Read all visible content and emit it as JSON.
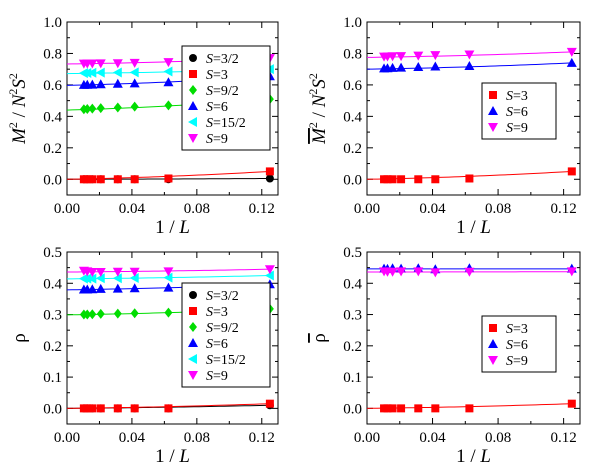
{
  "chart_data": [
    {
      "type": "scatter",
      "panel": "top-left",
      "xlabel": "1 / L",
      "ylabel": "M^2 / N^2 S^2",
      "xlim": [
        0,
        0.13
      ],
      "ylim": [
        -0.1,
        1.0
      ],
      "xticks": [
        "0.00",
        "0.04",
        "0.08",
        "0.12"
      ],
      "yticks": [
        "0.0",
        "0.2",
        "0.4",
        "0.6",
        "0.8",
        "1.0"
      ],
      "legend": {
        "position": "right"
      },
      "x": [
        0.0104,
        0.0125,
        0.0156,
        0.0208,
        0.0313,
        0.0417,
        0.0625,
        0.125
      ],
      "series": [
        {
          "name": "S=3/2",
          "marker": "circle",
          "color": "#000000",
          "values": [
            0.0,
            0.0,
            0.0,
            0.0,
            0.0,
            0.0,
            0.0,
            0.005
          ],
          "fit": [
            0.0,
            0.005
          ]
        },
        {
          "name": "S=3",
          "marker": "square",
          "color": "#ff0000",
          "values": [
            0.0,
            0.0,
            0.0,
            0.0,
            0.0,
            0.0,
            0.005,
            0.05
          ],
          "fit": [
            0.0,
            0.05
          ]
        },
        {
          "name": "S=9/2",
          "marker": "diamond",
          "color": "#00dd00",
          "values": [
            0.445,
            0.447,
            0.449,
            0.452,
            0.456,
            0.462,
            0.47,
            0.51
          ],
          "fit": [
            0.44,
            0.51
          ]
        },
        {
          "name": "S=6",
          "marker": "triangle-up",
          "color": "#0000ff",
          "values": [
            0.6,
            0.601,
            0.602,
            0.604,
            0.607,
            0.61,
            0.617,
            0.655
          ],
          "fit": [
            0.597,
            0.655
          ]
        },
        {
          "name": "S=15/2",
          "marker": "triangle-left",
          "color": "#00ffff",
          "values": [
            0.675,
            0.676,
            0.677,
            0.678,
            0.679,
            0.68,
            0.685,
            0.7
          ],
          "fit": [
            0.672,
            0.7
          ]
        },
        {
          "name": "S=9",
          "marker": "triangle-down",
          "color": "#ff00ff",
          "values": [
            0.735,
            0.736,
            0.736,
            0.737,
            0.738,
            0.74,
            0.745,
            0.77
          ],
          "fit": [
            0.733,
            0.77
          ]
        }
      ]
    },
    {
      "type": "scatter",
      "panel": "top-right",
      "xlabel": "1 / L",
      "ylabel": "M̄^2 / N^2 S^2",
      "xlim": [
        0,
        0.13
      ],
      "ylim": [
        -0.1,
        1.0
      ],
      "xticks": [
        "0.00",
        "0.04",
        "0.08",
        "0.12"
      ],
      "yticks": [
        "0.0",
        "0.2",
        "0.4",
        "0.6",
        "0.8",
        "1.0"
      ],
      "legend": {
        "position": "right"
      },
      "x": [
        0.0104,
        0.0125,
        0.0156,
        0.0208,
        0.0313,
        0.0417,
        0.0625,
        0.125
      ],
      "series": [
        {
          "name": "S=3",
          "marker": "square",
          "color": "#ff0000",
          "values": [
            0.0,
            0.0,
            0.0,
            0.0,
            0.0,
            0.0,
            0.005,
            0.05
          ],
          "fit": [
            0.0,
            0.05
          ]
        },
        {
          "name": "S=6",
          "marker": "triangle-up",
          "color": "#0000ff",
          "values": [
            0.705,
            0.706,
            0.708,
            0.71,
            0.714,
            0.717,
            0.72,
            0.74
          ],
          "fit": [
            0.7,
            0.74
          ]
        },
        {
          "name": "S=9",
          "marker": "triangle-down",
          "color": "#ff00ff",
          "values": [
            0.78,
            0.781,
            0.782,
            0.783,
            0.786,
            0.789,
            0.793,
            0.81
          ],
          "fit": [
            0.775,
            0.81
          ]
        }
      ]
    },
    {
      "type": "scatter",
      "panel": "bottom-left",
      "xlabel": "1 / L",
      "ylabel": "ρ",
      "xlim": [
        0,
        0.13
      ],
      "ylim": [
        -0.05,
        0.5
      ],
      "xticks": [
        "0.00",
        "0.04",
        "0.08",
        "0.12"
      ],
      "yticks": [
        "0.0",
        "0.1",
        "0.2",
        "0.3",
        "0.4",
        "0.5"
      ],
      "legend": {
        "position": "right"
      },
      "x": [
        0.0104,
        0.0125,
        0.0156,
        0.0208,
        0.0313,
        0.0417,
        0.0625,
        0.125
      ],
      "series": [
        {
          "name": "S=3/2",
          "marker": "circle",
          "color": "#000000",
          "values": [
            0.0,
            0.0,
            0.0,
            0.0,
            0.0,
            0.0,
            0.0,
            0.01
          ],
          "fit": [
            0.0,
            0.01
          ]
        },
        {
          "name": "S=3",
          "marker": "square",
          "color": "#ff0000",
          "values": [
            0.0,
            0.0,
            0.0,
            0.0,
            0.0,
            0.0,
            0.0,
            0.015
          ],
          "fit": [
            0.0,
            0.015
          ]
        },
        {
          "name": "S=9/2",
          "marker": "diamond",
          "color": "#00dd00",
          "values": [
            0.3,
            0.3,
            0.301,
            0.302,
            0.303,
            0.304,
            0.306,
            0.318
          ],
          "fit": [
            0.299,
            0.318
          ]
        },
        {
          "name": "S=6",
          "marker": "triangle-up",
          "color": "#0000ff",
          "values": [
            0.38,
            0.38,
            0.381,
            0.382,
            0.383,
            0.384,
            0.386,
            0.397
          ],
          "fit": [
            0.379,
            0.397
          ]
        },
        {
          "name": "S=15/2",
          "marker": "triangle-left",
          "color": "#00ffff",
          "values": [
            0.415,
            0.415,
            0.415,
            0.416,
            0.416,
            0.417,
            0.418,
            0.425
          ],
          "fit": [
            0.414,
            0.425
          ]
        },
        {
          "name": "S=9",
          "marker": "triangle-down",
          "color": "#ff00ff",
          "values": [
            0.44,
            0.438,
            0.436,
            0.436,
            0.437,
            0.437,
            0.438,
            0.445
          ],
          "fit": [
            0.436,
            0.445
          ]
        }
      ]
    },
    {
      "type": "scatter",
      "panel": "bottom-right",
      "xlabel": "1 / L",
      "ylabel": "ρ̄",
      "xlim": [
        0,
        0.13
      ],
      "ylim": [
        -0.05,
        0.5
      ],
      "xticks": [
        "0.00",
        "0.04",
        "0.08",
        "0.12"
      ],
      "yticks": [
        "0.0",
        "0.1",
        "0.2",
        "0.3",
        "0.4",
        "0.5"
      ],
      "legend": {
        "position": "right"
      },
      "x": [
        0.0104,
        0.0125,
        0.0156,
        0.0208,
        0.0313,
        0.0417,
        0.0625,
        0.125
      ],
      "series": [
        {
          "name": "S=3",
          "marker": "square",
          "color": "#ff0000",
          "values": [
            0.0,
            0.0,
            0.0,
            0.0,
            0.0,
            0.0,
            0.0,
            0.015
          ],
          "fit": [
            0.0,
            0.015
          ]
        },
        {
          "name": "S=6",
          "marker": "triangle-up",
          "color": "#0000ff",
          "values": [
            0.447,
            0.446,
            0.448,
            0.447,
            0.448,
            0.445,
            0.448,
            0.447
          ],
          "fit": [
            0.446,
            0.446
          ]
        },
        {
          "name": "S=9",
          "marker": "triangle-down",
          "color": "#ff00ff",
          "values": [
            0.438,
            0.437,
            0.437,
            0.438,
            0.438,
            0.435,
            0.437,
            0.438
          ],
          "fit": [
            0.436,
            0.437
          ]
        }
      ]
    }
  ]
}
